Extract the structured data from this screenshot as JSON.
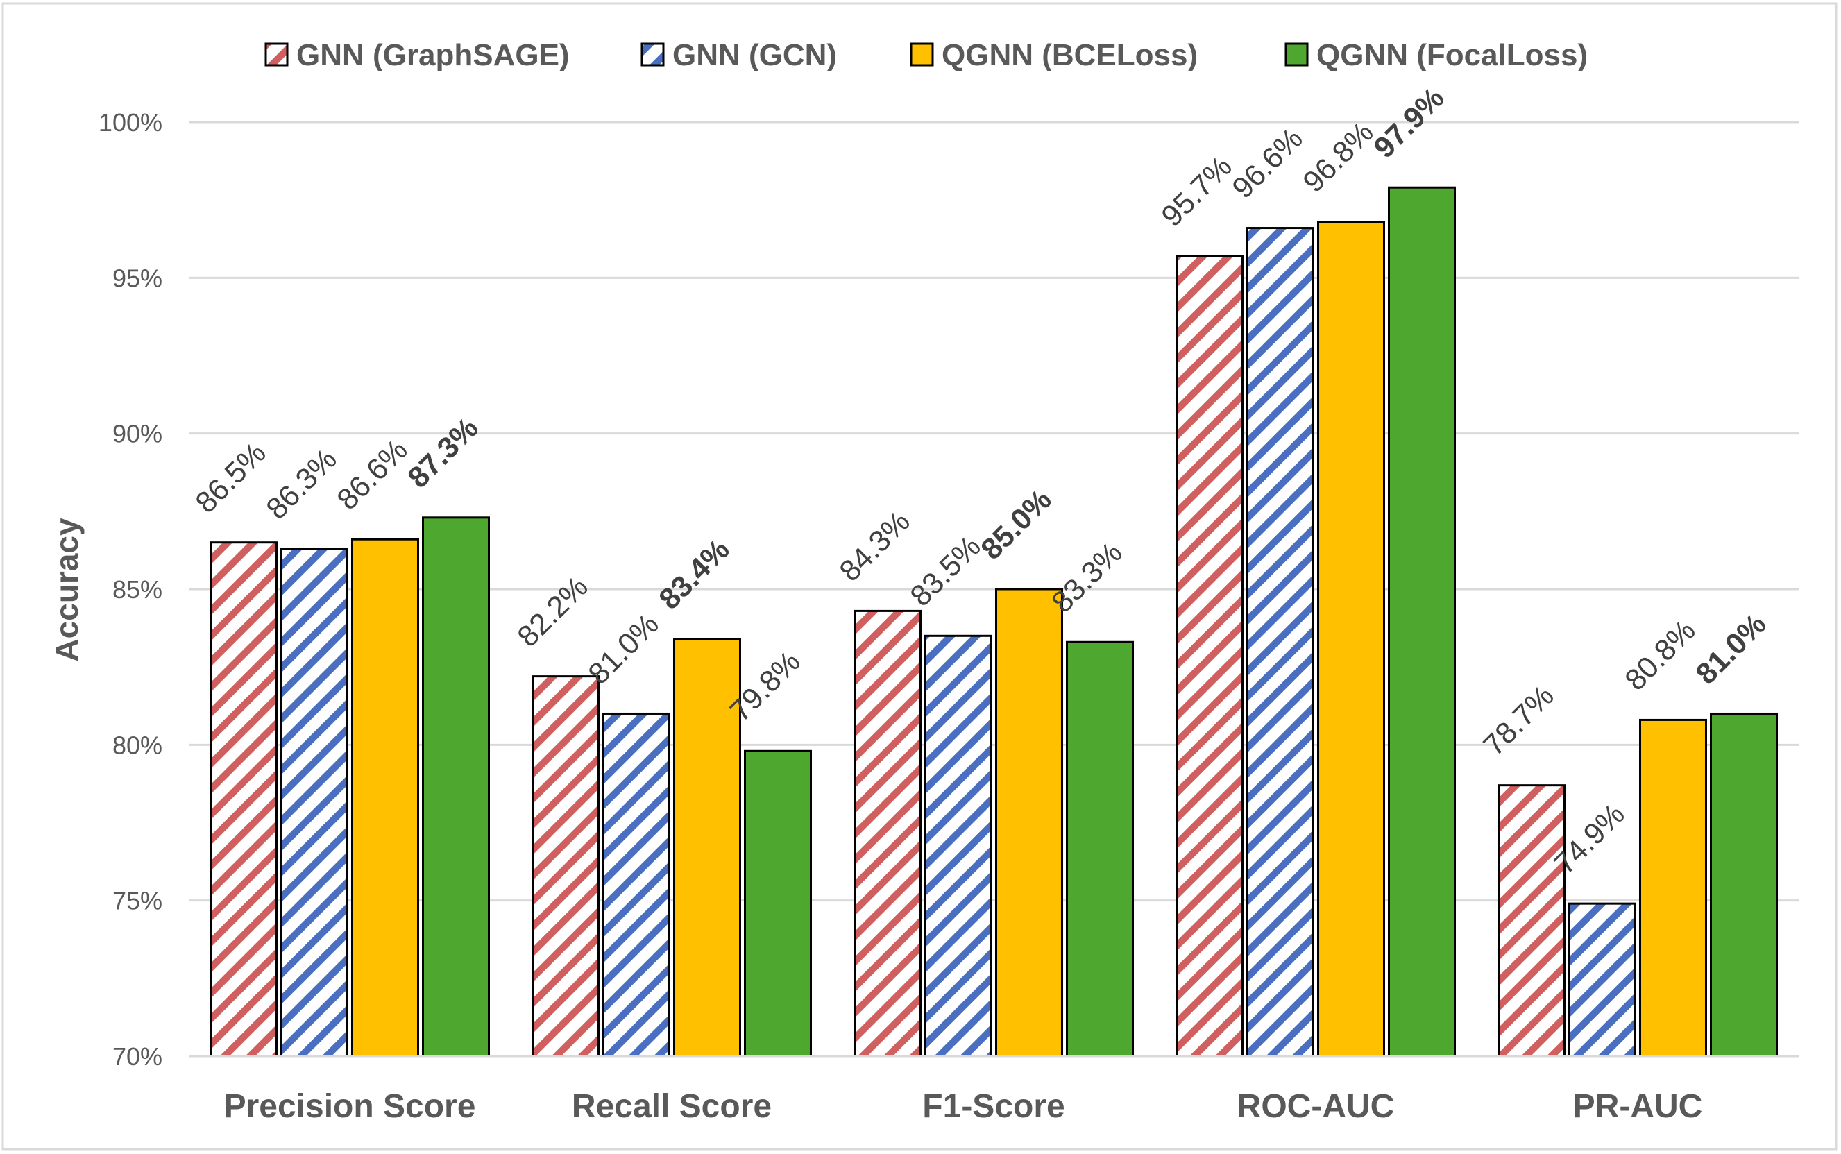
{
  "chart_data": {
    "type": "bar",
    "title": "",
    "xlabel": "",
    "ylabel": "Accuracy",
    "ylim": [
      70,
      100
    ],
    "y_unit": "%",
    "yticks": [
      "70%",
      "75%",
      "80%",
      "85%",
      "90%",
      "95%",
      "100%"
    ],
    "ytick_values": [
      70,
      75,
      80,
      85,
      90,
      95,
      100
    ],
    "grid": true,
    "legend_position": "top",
    "categories": [
      "Precision Score",
      "Recall Score",
      "F1-Score",
      "ROC-AUC",
      "PR-AUC"
    ],
    "series": [
      {
        "name": "GNN (GraphSAGE)",
        "color": "#d05f5f",
        "fill": "diagonal-stripes",
        "values": [
          86.5,
          82.2,
          84.3,
          95.7,
          78.7
        ],
        "labels": [
          "86.5%",
          "82.2%",
          "84.3%",
          "95.7%",
          "78.7%"
        ]
      },
      {
        "name": "GNN (GCN)",
        "color": "#4a6fc0",
        "fill": "diagonal-stripes",
        "values": [
          86.3,
          81.0,
          83.5,
          96.6,
          74.9
        ],
        "labels": [
          "86.3%",
          "81.0%",
          "83.5%",
          "96.6%",
          "74.9%"
        ]
      },
      {
        "name": "QGNN (BCELoss)",
        "color": "#ffc000",
        "fill": "solid",
        "values": [
          86.6,
          83.4,
          85.0,
          96.8,
          80.8
        ],
        "labels": [
          "86.6%",
          "83.4%",
          "85.0%",
          "96.8%",
          "80.8%"
        ]
      },
      {
        "name": "QGNN (FocalLoss)",
        "color": "#4ea72e",
        "fill": "solid",
        "values": [
          87.3,
          79.8,
          83.3,
          97.9,
          81.0
        ],
        "labels": [
          "87.3%",
          "79.8%",
          "83.3%",
          "97.9%",
          "81.0%"
        ]
      }
    ],
    "bold_labels_note": "highest value in each category is shown in bold",
    "best_series_index": [
      3,
      2,
      2,
      3,
      3
    ]
  }
}
